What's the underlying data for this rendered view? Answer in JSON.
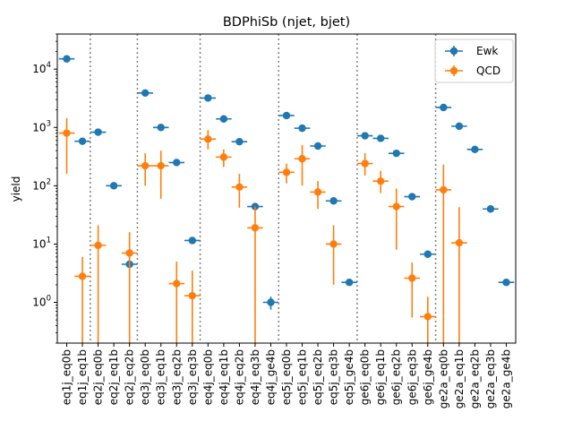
{
  "chart_data": {
    "type": "scatter",
    "title": "BDPhiSb (njet, bjet)",
    "xlabel": "",
    "ylabel": "yield",
    "yscale": "log",
    "ylim": [
      0.2,
      40000
    ],
    "y_ticks": [
      {
        "value": 1,
        "base": "10",
        "exp": "0"
      },
      {
        "value": 10,
        "base": "10",
        "exp": "1"
      },
      {
        "value": 100,
        "base": "10",
        "exp": "2"
      },
      {
        "value": 1000,
        "base": "10",
        "exp": "3"
      },
      {
        "value": 10000,
        "base": "10",
        "exp": "4"
      }
    ],
    "categories": [
      "eq1j_eq0b",
      "eq1j_eq1b",
      "eq2j_eq0b",
      "eq2j_eq1b",
      "eq2j_eq2b",
      "eq3j_eq0b",
      "eq3j_eq1b",
      "eq3j_eq2b",
      "eq3j_eq3b",
      "eq4j_eq0b",
      "eq4j_eq1b",
      "eq4j_eq2b",
      "eq4j_eq3b",
      "eq4j_ge4b",
      "eq5j_eq0b",
      "eq5j_eq1b",
      "eq5j_eq2b",
      "eq5j_eq3b",
      "eq5j_ge4b",
      "ge6j_eq0b",
      "ge6j_eq1b",
      "ge6j_eq2b",
      "ge6j_eq3b",
      "ge6j_ge4b",
      "ge2a_eq0b",
      "ge2a_eq1b",
      "ge2a_eq2b",
      "ge2a_eq3b",
      "ge2a_ge4b"
    ],
    "dividers_after_index": [
      1,
      4,
      8,
      13,
      18,
      23
    ],
    "grid": false,
    "legend": {
      "position": "top-right"
    },
    "series": [
      {
        "name": "Ewk",
        "color": "#1f77b4",
        "values": [
          15000,
          580,
          830,
          100,
          4.5,
          3900,
          1000,
          250,
          11.5,
          3200,
          1400,
          570,
          44,
          1.0,
          1600,
          970,
          480,
          55,
          2.2,
          720,
          650,
          360,
          65,
          6.7,
          2200,
          1050,
          420,
          40,
          2.2
        ],
        "err_low": [
          700,
          40,
          60,
          8,
          0.8,
          150,
          70,
          25,
          1.2,
          150,
          80,
          40,
          5,
          0.25,
          100,
          60,
          40,
          6,
          0.2,
          50,
          50,
          30,
          7,
          0.9,
          130,
          70,
          35,
          4,
          0.2
        ],
        "err_high": [
          700,
          40,
          60,
          8,
          0.8,
          150,
          70,
          25,
          1.2,
          150,
          80,
          40,
          5,
          0.25,
          100,
          60,
          40,
          6,
          0.2,
          50,
          50,
          30,
          7,
          0.9,
          130,
          70,
          35,
          4,
          0.2
        ]
      },
      {
        "name": "QCD",
        "color": "#ff7f0e",
        "points": [
          {
            "i": 0,
            "y": 800,
            "lo": 160,
            "hi": 1450
          },
          {
            "i": 1,
            "y": 2.8,
            "lo": 0.2,
            "hi": 6.0
          },
          {
            "i": 2,
            "y": 9.5,
            "lo": 0.2,
            "hi": 21
          },
          {
            "i": 4,
            "y": 7.0,
            "lo": 0.2,
            "hi": 16
          },
          {
            "i": 5,
            "y": 220,
            "lo": 100,
            "hi": 360
          },
          {
            "i": 6,
            "y": 220,
            "lo": 60,
            "hi": 400
          },
          {
            "i": 7,
            "y": 2.1,
            "lo": 0.2,
            "hi": 5.0
          },
          {
            "i": 8,
            "y": 1.3,
            "lo": 0.2,
            "hi": 3.5
          },
          {
            "i": 9,
            "y": 630,
            "lo": 420,
            "hi": 900
          },
          {
            "i": 10,
            "y": 310,
            "lo": 210,
            "hi": 420
          },
          {
            "i": 11,
            "y": 95,
            "lo": 42,
            "hi": 160
          },
          {
            "i": 12,
            "y": 19,
            "lo": 0.2,
            "hi": 44
          },
          {
            "i": 14,
            "y": 170,
            "lo": 110,
            "hi": 240
          },
          {
            "i": 15,
            "y": 290,
            "lo": 100,
            "hi": 500
          },
          {
            "i": 16,
            "y": 78,
            "lo": 40,
            "hi": 120
          },
          {
            "i": 17,
            "y": 10,
            "lo": 2.0,
            "hi": 21
          },
          {
            "i": 19,
            "y": 240,
            "lo": 150,
            "hi": 360
          },
          {
            "i": 20,
            "y": 120,
            "lo": 75,
            "hi": 180
          },
          {
            "i": 21,
            "y": 44,
            "lo": 8.0,
            "hi": 90
          },
          {
            "i": 22,
            "y": 2.6,
            "lo": 0.55,
            "hi": 4.8
          },
          {
            "i": 23,
            "y": 0.57,
            "lo": 0.2,
            "hi": 1.25
          },
          {
            "i": 24,
            "y": 85,
            "lo": 0.2,
            "hi": 230
          },
          {
            "i": 25,
            "y": 10.5,
            "lo": 0.2,
            "hi": 43
          }
        ]
      }
    ]
  }
}
